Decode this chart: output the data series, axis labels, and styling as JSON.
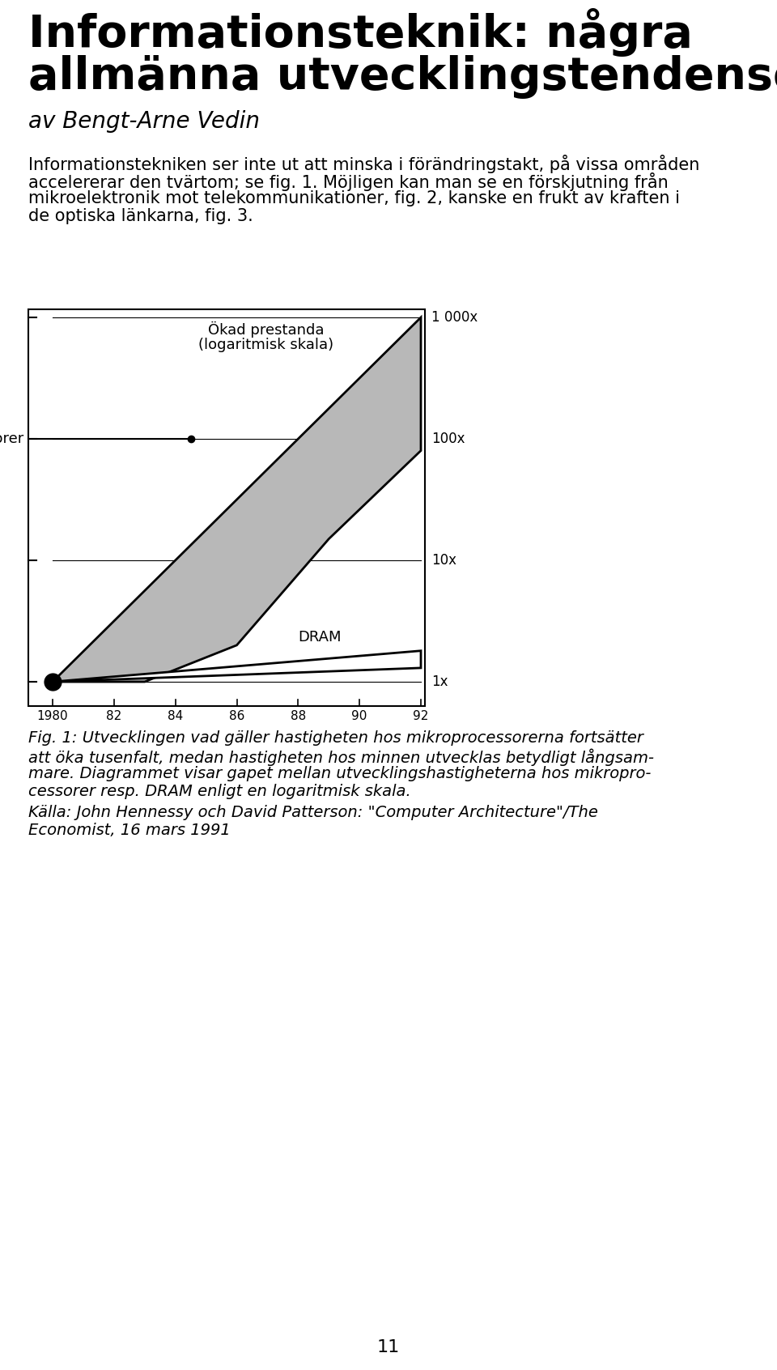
{
  "title_line1": "Informationsteknik: några",
  "title_line2": "allmänna utvecklingstendenser",
  "subtitle": "av Bengt-Arne Vedin",
  "body_text_1": "Informationstekniken ser inte ut att minska i förändringstakt, på vissa områden",
  "body_text_2": "accelererar den tvärtom; se fig. 1. Möjligen kan man se en förskjutning från",
  "body_text_3": "mikroelektronik mot telekommunikationer, fig. 2, kanske en frukt av kraften i",
  "body_text_4": "de optiska länkarna, fig. 3.",
  "chart_title_line1": "Ökad prestanda",
  "chart_title_line2": "(logaritmisk skala)",
  "y_tick_labels": [
    "1 000x",
    "100x",
    "10x",
    "1x"
  ],
  "y_tick_vals": [
    1000,
    100,
    10,
    1
  ],
  "x_tick_years": [
    1980,
    1982,
    1984,
    1986,
    1988,
    1990,
    1992
  ],
  "x_tick_labels": [
    "1980",
    "82",
    "84",
    "86",
    "88",
    "90",
    "92"
  ],
  "mikroprocessorer_label": "Mikroprocessorer",
  "dram_label": "DRAM",
  "caption_line1": "Fig. 1: Utvecklingen vad gäller hastigheten hos mikroprocessorerna fortsätter",
  "caption_line2": "att öka tusenfalt, medan hastigheten hos minnen utvecklas betydligt långsam-",
  "caption_line3": "mare. Diagrammet visar gapet mellan utvecklingshastigheterna hos mikropro-",
  "caption_line4": "cessorer resp. DRAM enligt en logaritmisk skala.",
  "caption_line5": "Källa: John Hennessy och David Patterson: \"Computer Architecture\"/The",
  "caption_line6": "Economist, 16 mars 1991",
  "page_number": "11",
  "bg_color": "#ffffff",
  "chart_fill_color": "#b8b8b8",
  "chart_line_color": "#000000",
  "title_fontsize": 40,
  "subtitle_fontsize": 20,
  "body_fontsize": 15,
  "chart_label_fontsize": 13,
  "caption_fontsize": 14,
  "tick_label_fontsize": 12
}
